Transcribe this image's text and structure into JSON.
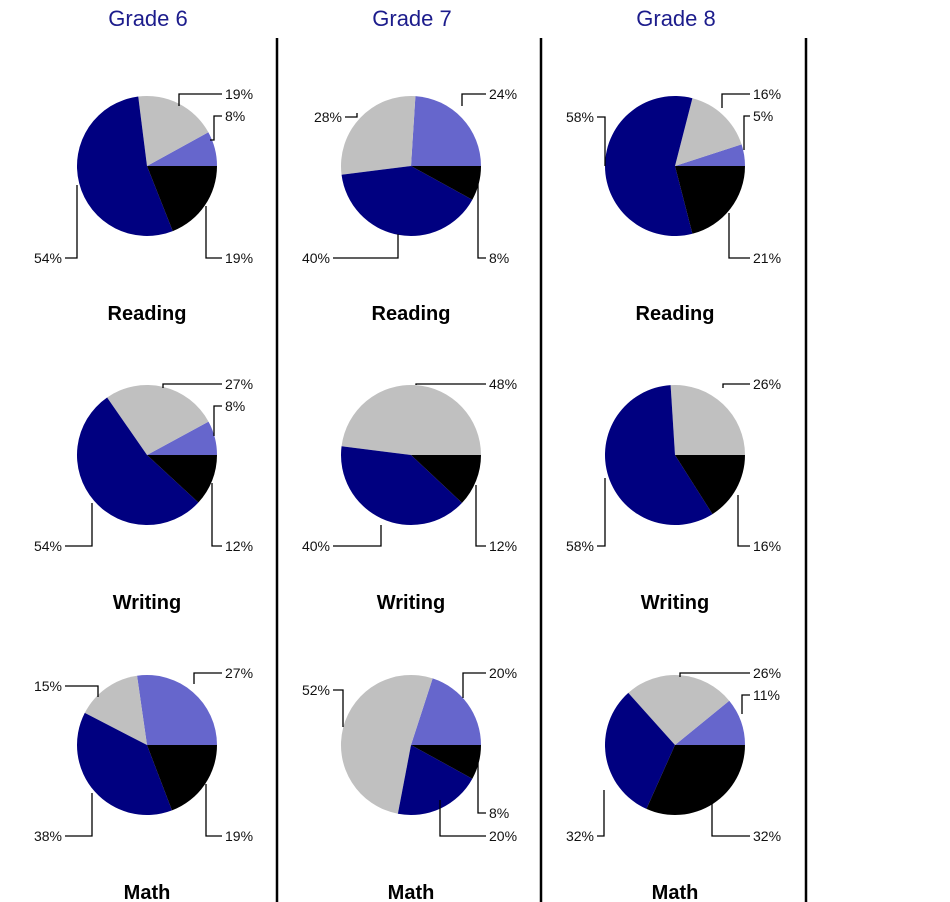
{
  "headers": [
    "Grade 6",
    "Grade 7",
    "Grade 8"
  ],
  "colors": {
    "navy": "#000080",
    "gray": "#c0c0c0",
    "periwinkle": "#6666cc",
    "black": "#000000"
  },
  "chart_data": [
    {
      "type": "pie",
      "grade": "Grade 6",
      "title": "Reading",
      "slices": [
        {
          "value": 54,
          "label": "54%",
          "color": "#000080"
        },
        {
          "value": 19,
          "label": "19%",
          "color": "#c0c0c0"
        },
        {
          "value": 8,
          "label": "8%",
          "color": "#6666cc"
        },
        {
          "value": 19,
          "label": "19%",
          "color": "#000000"
        }
      ]
    },
    {
      "type": "pie",
      "grade": "Grade 7",
      "title": "Reading",
      "slices": [
        {
          "value": 40,
          "label": "40%",
          "color": "#000080"
        },
        {
          "value": 28,
          "label": "28%",
          "color": "#c0c0c0"
        },
        {
          "value": 24,
          "label": "24%",
          "color": "#6666cc"
        },
        {
          "value": 8,
          "label": "8%",
          "color": "#000000"
        }
      ]
    },
    {
      "type": "pie",
      "grade": "Grade 8",
      "title": "Reading",
      "slices": [
        {
          "value": 58,
          "label": "58%",
          "color": "#000080"
        },
        {
          "value": 16,
          "label": "16%",
          "color": "#c0c0c0"
        },
        {
          "value": 5,
          "label": "5%",
          "color": "#6666cc"
        },
        {
          "value": 21,
          "label": "21%",
          "color": "#000000"
        }
      ]
    },
    {
      "type": "pie",
      "grade": "Grade 6",
      "title": "Writing",
      "slices": [
        {
          "value": 54,
          "label": "54%",
          "color": "#000080"
        },
        {
          "value": 27,
          "label": "27%",
          "color": "#c0c0c0"
        },
        {
          "value": 8,
          "label": "8%",
          "color": "#6666cc"
        },
        {
          "value": 12,
          "label": "12%",
          "color": "#000000"
        }
      ]
    },
    {
      "type": "pie",
      "grade": "Grade 7",
      "title": "Writing",
      "slices": [
        {
          "value": 40,
          "label": "40%",
          "color": "#000080"
        },
        {
          "value": 48,
          "label": "48%",
          "color": "#c0c0c0"
        },
        {
          "value": 12,
          "label": "12%",
          "color": "#000000"
        }
      ]
    },
    {
      "type": "pie",
      "grade": "Grade 8",
      "title": "Writing",
      "slices": [
        {
          "value": 58,
          "label": "58%",
          "color": "#000080"
        },
        {
          "value": 26,
          "label": "26%",
          "color": "#c0c0c0"
        },
        {
          "value": 16,
          "label": "16%",
          "color": "#000000"
        }
      ]
    },
    {
      "type": "pie",
      "grade": "Grade 6",
      "title": "Math",
      "slices": [
        {
          "value": 38,
          "label": "38%",
          "color": "#000080"
        },
        {
          "value": 15,
          "label": "15%",
          "color": "#c0c0c0"
        },
        {
          "value": 27,
          "label": "27%",
          "color": "#6666cc"
        },
        {
          "value": 19,
          "label": "19%",
          "color": "#000000"
        }
      ]
    },
    {
      "type": "pie",
      "grade": "Grade 7",
      "title": "Math",
      "slices": [
        {
          "value": 20,
          "label": "20%",
          "color": "#000080"
        },
        {
          "value": 52,
          "label": "52%",
          "color": "#c0c0c0"
        },
        {
          "value": 20,
          "label": "20%",
          "color": "#6666cc"
        },
        {
          "value": 8,
          "label": "8%",
          "color": "#000000"
        }
      ]
    },
    {
      "type": "pie",
      "grade": "Grade 8",
      "title": "Math",
      "slices": [
        {
          "value": 32,
          "label": "32%",
          "color": "#000080"
        },
        {
          "value": 26,
          "label": "26%",
          "color": "#c0c0c0"
        },
        {
          "value": 11,
          "label": "11%",
          "color": "#6666cc"
        },
        {
          "value": 32,
          "label": "32%",
          "color": "#000000"
        }
      ]
    }
  ]
}
